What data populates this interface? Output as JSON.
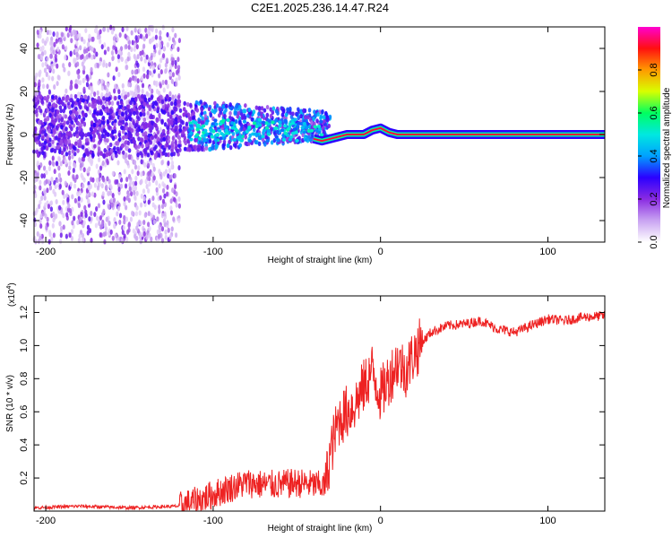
{
  "title": "C2E1.2025.236.14.47.R24",
  "chart_data": [
    {
      "type": "heatmap",
      "name": "spectrogram",
      "xlabel": "Height of straight line (km)",
      "ylabel": "Frequency (Hz)",
      "xlim": [
        -207,
        134
      ],
      "ylim": [
        -50,
        50
      ],
      "xticks": [
        -200,
        -100,
        0,
        100
      ],
      "yticks": [
        -40,
        -20,
        0,
        20,
        40
      ],
      "colorbar": {
        "label": "Normalized spectral amplitude",
        "range": [
          0,
          1
        ],
        "ticks": [
          0.0,
          0.2,
          0.4,
          0.6,
          0.8
        ],
        "colors": [
          "#ffffff",
          "#c9a3f2",
          "#8a2be2",
          "#2b00ff",
          "#00a0ff",
          "#00e8e0",
          "#00ff60",
          "#d8ff00",
          "#ff9a00",
          "#ff1010",
          "#ff00d0"
        ]
      },
      "line": {
        "description": "dominant frequency ridge",
        "x": [
          -40,
          -35,
          -30,
          -25,
          -20,
          -10,
          -5,
          0,
          5,
          10,
          134
        ],
        "y": [
          -2,
          -3,
          -2,
          -1,
          0,
          0,
          2,
          3,
          1,
          0,
          0
        ]
      },
      "scatter_regions": [
        {
          "x": [
            -207,
            -120
          ],
          "y": [
            -50,
            50
          ],
          "intensity": 0.15
        },
        {
          "x": [
            -120,
            -40
          ],
          "y": [
            -15,
            15
          ],
          "intensity": 0.3
        },
        {
          "x": [
            -207,
            -120
          ],
          "y": [
            -5,
            20
          ],
          "intensity": 0.25
        }
      ]
    },
    {
      "type": "line",
      "name": "snr",
      "xlabel": "Height of straight line (km)",
      "ylabel": "SNR (10 * v/v)",
      "y_multiplier": "(x10",
      "y_multiplier_exp": "4",
      "y_multiplier_close": ")",
      "xlim": [
        -207,
        134
      ],
      "ylim": [
        0,
        1.3
      ],
      "xticks": [
        -200,
        -100,
        0,
        100
      ],
      "yticks": [
        0.2,
        0.4,
        0.6,
        0.8,
        1.0,
        1.2
      ],
      "color": "#ee2222",
      "x": [
        -207,
        -180,
        -150,
        -120,
        -110,
        -100,
        -90,
        -80,
        -70,
        -60,
        -50,
        -40,
        -33,
        -30,
        -25,
        -20,
        -15,
        -10,
        -5,
        0,
        5,
        10,
        15,
        20,
        25,
        30,
        40,
        50,
        60,
        70,
        80,
        90,
        100,
        110,
        120,
        134
      ],
      "y": [
        0.02,
        0.03,
        0.02,
        0.03,
        0.06,
        0.1,
        0.14,
        0.17,
        0.16,
        0.16,
        0.17,
        0.16,
        0.15,
        0.35,
        0.55,
        0.6,
        0.65,
        0.75,
        0.85,
        0.7,
        0.8,
        0.9,
        0.85,
        0.95,
        1.02,
        1.08,
        1.12,
        1.13,
        1.15,
        1.1,
        1.08,
        1.12,
        1.16,
        1.15,
        1.17,
        1.18
      ]
    }
  ]
}
